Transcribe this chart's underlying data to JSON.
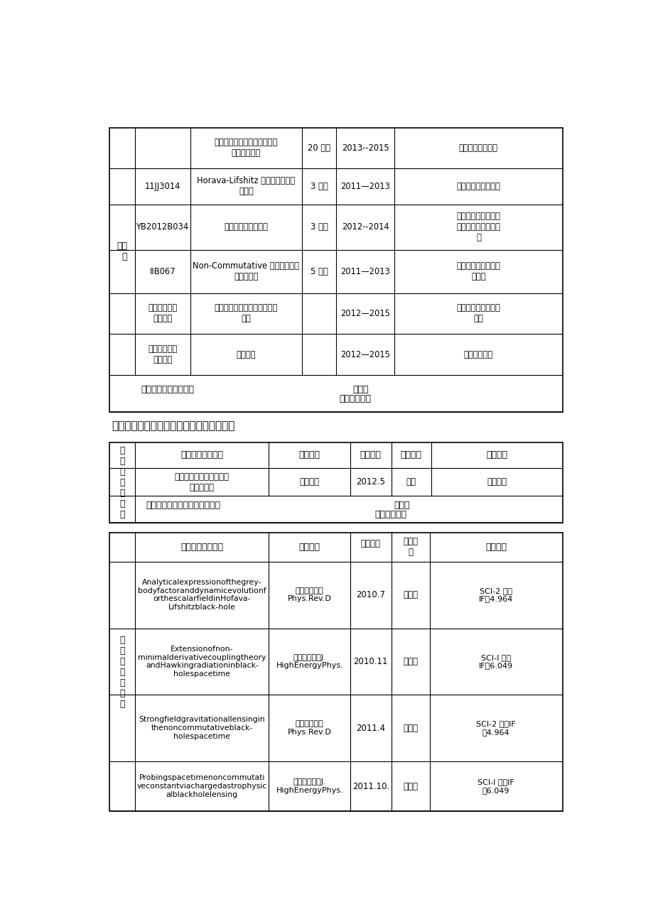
{
  "bg_color": "#ffffff",
  "section6_title": "六、近五年教学、科研论文或专著发表情况",
  "top_table": {
    "rows": [
      {
        "col1": "",
        "col2": "非对易引力黑洞研究与时空基\n本长度的探测",
        "col3": "20 万元",
        "col4": "2013--2015",
        "col5": "国家自然科学基金"
      },
      {
        "col1": "11JJ3014",
        "col2": "Horava-Lifshitz 引力中微扰演化\n的研究",
        "col3": "3 万元",
        "col4": "2011—2013",
        "col5": "湖南省自然科学基金"
      },
      {
        "col1": "YB2012B034",
        "col2": "霍金辐射的相关研究",
        "col3": "3 万元",
        "col4": "2012--2014",
        "col5": "湖南省优秀博士学位\n论文获奖作者资助项\n目"
      },
      {
        "col1": "IIB067",
        "col2": "Non-Commutative 引力黑洞似正\n规模的研究",
        "col3": "5 万元",
        "col4": "2011—2013",
        "col5": "湖南省教育厅优秀青\n年基金"
      },
      {
        "col1": "参与，核心成\n员、秘书",
        "col2": "信息科学前沿理论及关键技术\n应用",
        "col3": "",
        "col4": "2012—2015",
        "col5": "湖南省高校科技创新\n团队"
      },
      {
        "col1": "参与，核心成\n员、秘书",
        "col2": "理论物理",
        "col3": "",
        "col4": "2012—2015",
        "col5": "校级重点学科"
      }
    ]
  },
  "teaching_rows": [
    [
      "热力学统计物理学课程教\n学经验浅谈",
      "科教导刊",
      "2012.5",
      "省级",
      "知网收录"
    ]
  ],
  "research_rows": [
    [
      "Analyticalexpressionofthegrey-\nbodyfactoranddynamicevolutionf\northescalarfieldinHofava-\nLifshitzblack-hole",
      "《物理评论》\nPhys.Rev.D",
      "2010.7",
      "国际级",
      "SCI-2 区，\nIF：4.964"
    ],
    [
      "Extensionofnon-\nminimalderivativecouplingtheory\nandHawkingradiationinblack-\nholespacetime",
      "《高能物理》J.\nHighEnergyPhys.",
      "2010.11",
      "国际级",
      "SCI-I 区，\nIF：6.049"
    ],
    [
      "Strongfieldgravitationallensingin\nthenoncommutativeblack-\nholespacetime",
      "《物理评论》\nPhys.Rev.D",
      "2011.4",
      "国际级",
      "SCI-2 区，IF\n：4.964"
    ],
    [
      "Probingspacetimenoncommutati\nveconstantviachargedastrophysic\nalblackholelensing",
      "《高能物理》J.\nHighEnergyPhys.",
      "2011.10.",
      "国际级",
      "SCI-I 区，IF\n：6.049"
    ]
  ]
}
